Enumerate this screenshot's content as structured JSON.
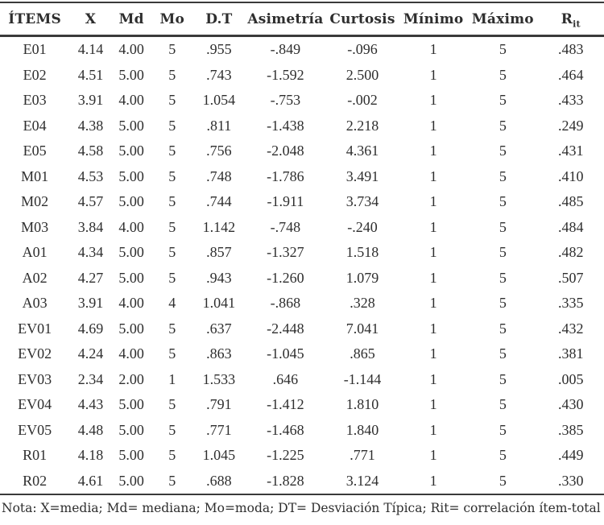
{
  "table": {
    "headers": [
      {
        "label": "ÍTEMS"
      },
      {
        "label": "X"
      },
      {
        "label": "Md"
      },
      {
        "label": "Mo"
      },
      {
        "label": "D.T"
      },
      {
        "label": "Asimetría"
      },
      {
        "label": "Curtosis"
      },
      {
        "label": "Mínimo"
      },
      {
        "label": "Máximo"
      },
      {
        "label": "R",
        "sub": "it"
      }
    ],
    "rows": [
      [
        "E01",
        "4.14",
        "4.00",
        "5",
        ".955",
        "-.849",
        "-.096",
        "1",
        "5",
        ".483"
      ],
      [
        "E02",
        "4.51",
        "5.00",
        "5",
        ".743",
        "-1.592",
        "2.500",
        "1",
        "5",
        ".464"
      ],
      [
        "E03",
        "3.91",
        "4.00",
        "5",
        "1.054",
        "-.753",
        "-.002",
        "1",
        "5",
        ".433"
      ],
      [
        "E04",
        "4.38",
        "5.00",
        "5",
        ".811",
        "-1.438",
        "2.218",
        "1",
        "5",
        ".249"
      ],
      [
        "E05",
        "4.58",
        "5.00",
        "5",
        ".756",
        "-2.048",
        "4.361",
        "1",
        "5",
        ".431"
      ],
      [
        "M01",
        "4.53",
        "5.00",
        "5",
        ".748",
        "-1.786",
        "3.491",
        "1",
        "5",
        ".410"
      ],
      [
        "M02",
        "4.57",
        "5.00",
        "5",
        ".744",
        "-1.911",
        "3.734",
        "1",
        "5",
        ".485"
      ],
      [
        "M03",
        "3.84",
        "4.00",
        "5",
        "1.142",
        "-.748",
        "-.240",
        "1",
        "5",
        ".484"
      ],
      [
        "A01",
        "4.34",
        "5.00",
        "5",
        ".857",
        "-1.327",
        "1.518",
        "1",
        "5",
        ".482"
      ],
      [
        "A02",
        "4.27",
        "5.00",
        "5",
        ".943",
        "-1.260",
        "1.079",
        "1",
        "5",
        ".507"
      ],
      [
        "A03",
        "3.91",
        "4.00",
        "4",
        "1.041",
        "-.868",
        ".328",
        "1",
        "5",
        ".335"
      ],
      [
        "EV01",
        "4.69",
        "5.00",
        "5",
        ".637",
        "-2.448",
        "7.041",
        "1",
        "5",
        ".432"
      ],
      [
        "EV02",
        "4.24",
        "4.00",
        "5",
        ".863",
        "-1.045",
        ".865",
        "1",
        "5",
        ".381"
      ],
      [
        "EV03",
        "2.34",
        "2.00",
        "1",
        "1.533",
        ".646",
        "-1.144",
        "1",
        "5",
        ".005"
      ],
      [
        "EV04",
        "4.43",
        "5.00",
        "5",
        ".791",
        "-1.412",
        "1.810",
        "1",
        "5",
        ".430"
      ],
      [
        "EV05",
        "4.48",
        "5.00",
        "5",
        ".771",
        "-1.468",
        "1.840",
        "1",
        "5",
        ".385"
      ],
      [
        "R01",
        "4.18",
        "5.00",
        "5",
        "1.045",
        "-1.225",
        ".771",
        "1",
        "5",
        ".449"
      ],
      [
        "R02",
        "4.61",
        "5.00",
        "5",
        ".688",
        "-1.828",
        "3.124",
        "1",
        "5",
        ".330"
      ]
    ]
  },
  "note": "Nota: X=media; Md= mediana; Mo=moda; DT= Desviación Típica; Rit= correlación ítem-total",
  "colors": {
    "text": "#2e2e2e",
    "rule_line": "#3a3a3a",
    "background": "#ffffff"
  },
  "chart_data": {
    "type": "table",
    "columns": [
      "ÍTEMS",
      "X",
      "Md",
      "Mo",
      "D.T",
      "Asimetría",
      "Curtosis",
      "Mínimo",
      "Máximo",
      "Rit"
    ],
    "rows": [
      [
        "E01",
        4.14,
        4.0,
        5,
        0.955,
        -0.849,
        -0.096,
        1,
        5,
        0.483
      ],
      [
        "E02",
        4.51,
        5.0,
        5,
        0.743,
        -1.592,
        2.5,
        1,
        5,
        0.464
      ],
      [
        "E03",
        3.91,
        4.0,
        5,
        1.054,
        -0.753,
        -0.002,
        1,
        5,
        0.433
      ],
      [
        "E04",
        4.38,
        5.0,
        5,
        0.811,
        -1.438,
        2.218,
        1,
        5,
        0.249
      ],
      [
        "E05",
        4.58,
        5.0,
        5,
        0.756,
        -2.048,
        4.361,
        1,
        5,
        0.431
      ],
      [
        "M01",
        4.53,
        5.0,
        5,
        0.748,
        -1.786,
        3.491,
        1,
        5,
        0.41
      ],
      [
        "M02",
        4.57,
        5.0,
        5,
        0.744,
        -1.911,
        3.734,
        1,
        5,
        0.485
      ],
      [
        "M03",
        3.84,
        4.0,
        5,
        1.142,
        -0.748,
        -0.24,
        1,
        5,
        0.484
      ],
      [
        "A01",
        4.34,
        5.0,
        5,
        0.857,
        -1.327,
        1.518,
        1,
        5,
        0.482
      ],
      [
        "A02",
        4.27,
        5.0,
        5,
        0.943,
        -1.26,
        1.079,
        1,
        5,
        0.507
      ],
      [
        "A03",
        3.91,
        4.0,
        4,
        1.041,
        -0.868,
        0.328,
        1,
        5,
        0.335
      ],
      [
        "EV01",
        4.69,
        5.0,
        5,
        0.637,
        -2.448,
        7.041,
        1,
        5,
        0.432
      ],
      [
        "EV02",
        4.24,
        4.0,
        5,
        0.863,
        -1.045,
        0.865,
        1,
        5,
        0.381
      ],
      [
        "EV03",
        2.34,
        2.0,
        1,
        1.533,
        0.646,
        -1.144,
        1,
        5,
        0.005
      ],
      [
        "EV04",
        4.43,
        5.0,
        5,
        0.791,
        -1.412,
        1.81,
        1,
        5,
        0.43
      ],
      [
        "EV05",
        4.48,
        5.0,
        5,
        0.771,
        -1.468,
        1.84,
        1,
        5,
        0.385
      ],
      [
        "R01",
        4.18,
        5.0,
        5,
        1.045,
        -1.225,
        0.771,
        1,
        5,
        0.449
      ],
      [
        "R02",
        4.61,
        5.0,
        5,
        0.688,
        -1.828,
        3.124,
        1,
        5,
        0.33
      ]
    ],
    "title": "",
    "note": "Nota: X=media; Md= mediana; Mo=moda; DT= Desviación Típica; Rit= correlación ítem-total"
  }
}
